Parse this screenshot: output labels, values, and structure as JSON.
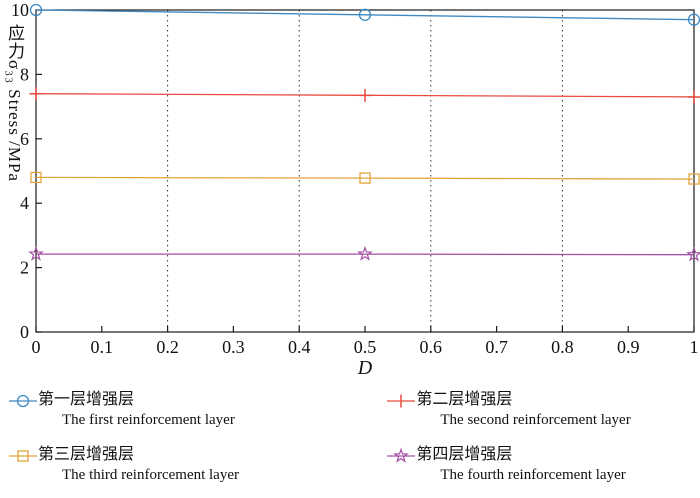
{
  "chart_data": {
    "type": "line",
    "title": "",
    "xlabel": "D",
    "ylabel": "应力σ₃₃ Stress /MPa",
    "xlim": [
      0,
      1
    ],
    "ylim": [
      0,
      10
    ],
    "xticks": [
      0,
      0.1,
      0.2,
      0.3,
      0.4,
      0.5,
      0.6,
      0.7,
      0.8,
      0.9,
      1
    ],
    "yticks": [
      0,
      2,
      4,
      6,
      8,
      10
    ],
    "grid_x": [
      0.2,
      0.4,
      0.6,
      0.8
    ],
    "grid_style": "dotted",
    "legend_position": "below",
    "x": [
      0,
      0.5,
      1
    ],
    "series": [
      {
        "name_zh": "第一层增强层",
        "name_en": "The first reinforcement layer",
        "marker": "circle",
        "color": "#3f8ac4",
        "values": [
          10.0,
          9.85,
          9.7
        ]
      },
      {
        "name_zh": "第二层增强层",
        "name_en": "The second reinforcement layer",
        "marker": "plus",
        "color": "#e84a3f",
        "values": [
          7.4,
          7.35,
          7.3
        ]
      },
      {
        "name_zh": "第三层增强层",
        "name_en": "The third reinforcement layer",
        "marker": "square",
        "color": "#e2a43c",
        "values": [
          4.8,
          4.78,
          4.75
        ]
      },
      {
        "name_zh": "第四层增强层",
        "name_en": "The fourth reinforcement layer",
        "marker": "star",
        "color": "#a34fa3",
        "values": [
          2.42,
          2.42,
          2.4
        ]
      }
    ],
    "axis_color": "#1a1a1a"
  }
}
